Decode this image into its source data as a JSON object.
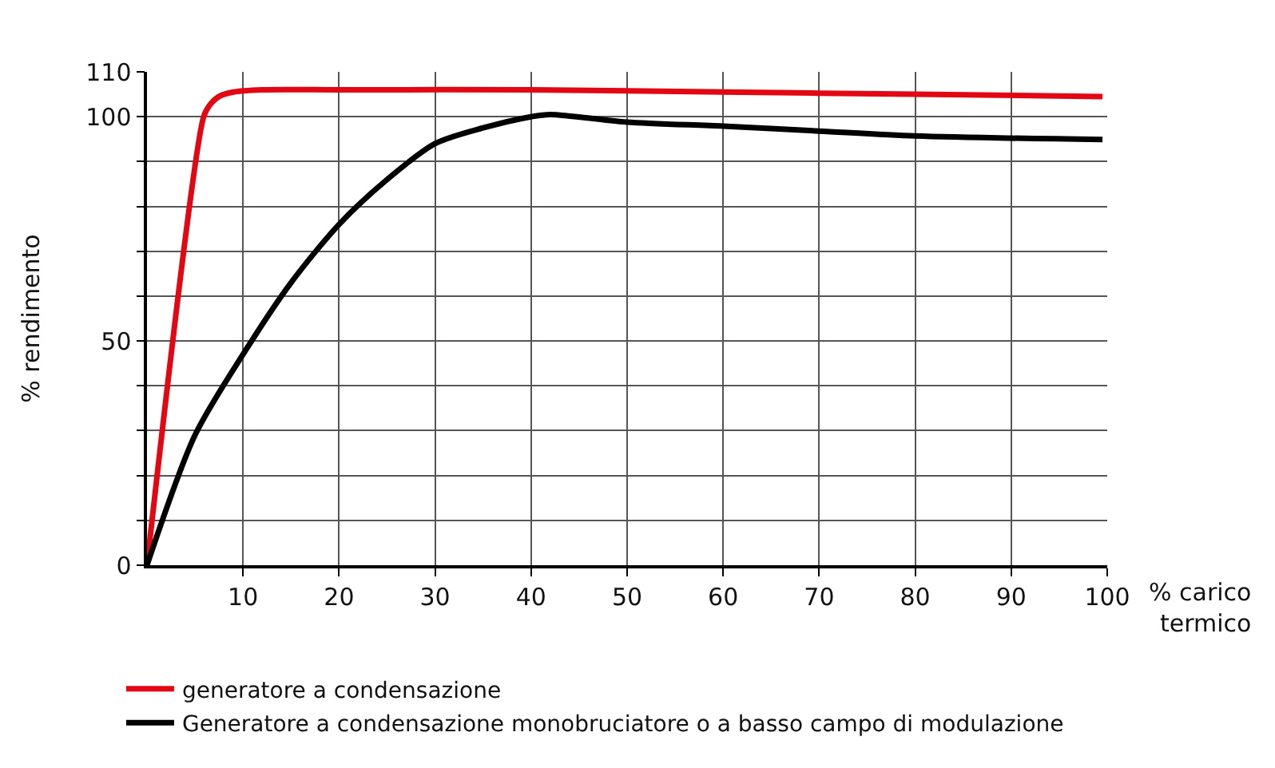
{
  "chart_data": {
    "type": "line",
    "xlabel": "% carico\ntermico",
    "ylabel": "% rendimento",
    "xlim": [
      0,
      100
    ],
    "ylim": [
      0,
      110
    ],
    "xticks": [
      10,
      20,
      30,
      40,
      50,
      60,
      70,
      80,
      90,
      100
    ],
    "yticks": [
      0,
      {
        "value": 10,
        "label": null
      },
      {
        "value": 20,
        "label": null
      },
      {
        "value": 30,
        "label": null
      },
      {
        "value": 40,
        "label": null
      },
      50,
      {
        "value": 60,
        "label": null
      },
      {
        "value": 70,
        "label": null
      },
      {
        "value": 80,
        "label": null
      },
      {
        "value": 90,
        "label": null
      },
      100,
      110
    ],
    "grid": true,
    "legend": "bottom left",
    "marker": "none",
    "line_style": "solid",
    "series": [
      {
        "name": "generatore a condensazione",
        "color": "#e30613",
        "x": [
          0,
          5.9,
          6.5,
          7.5,
          9,
          12,
          20,
          40,
          60,
          80,
          99.5
        ],
        "values": [
          0,
          100,
          102.5,
          104.5,
          105.5,
          106,
          106,
          106,
          105.5,
          105,
          104.5
        ]
      },
      {
        "name": "Generatore a condensazione monobruciatore o a basso campo di modulazione",
        "color": "#000000",
        "x": [
          0,
          5,
          10,
          15,
          20,
          25,
          30,
          35,
          40,
          42,
          50,
          60,
          70,
          80,
          99.5
        ],
        "values": [
          0,
          29,
          47,
          63,
          76,
          86,
          94,
          97.5,
          100,
          100.5,
          98.8,
          97.9,
          96.8,
          95.7,
          94.9
        ]
      }
    ]
  }
}
